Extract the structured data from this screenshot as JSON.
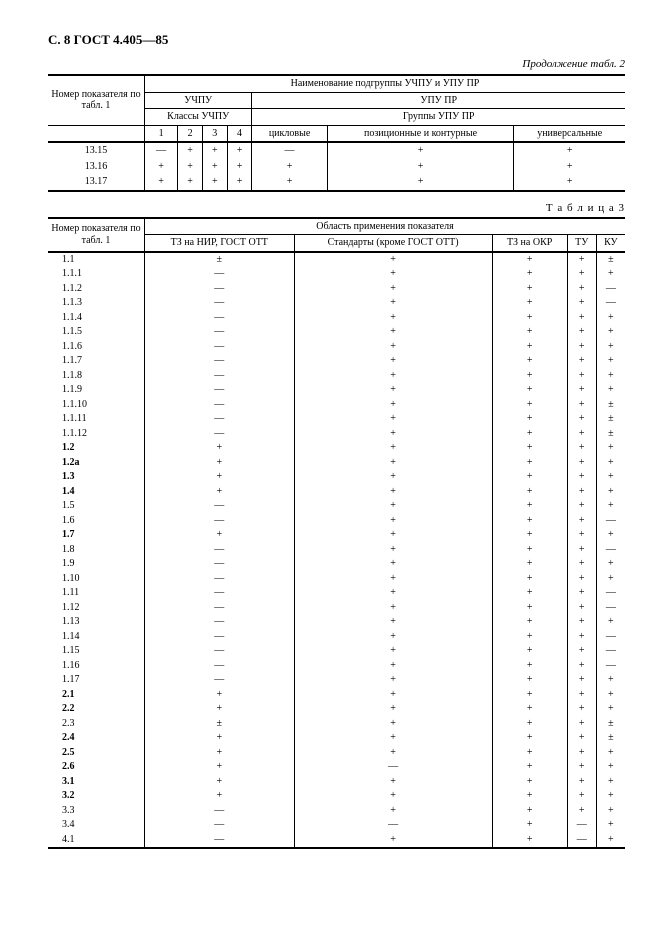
{
  "header": "С. 8 ГОСТ 4.405—85",
  "cont2": "Продолжение табл. 2",
  "t2": {
    "h_group": "Наименование подгруппы УЧПУ и УПУ ПР",
    "h_num": "Номер показателя по табл. 1",
    "h_uchpu": "УЧПУ",
    "h_upupr": "УПУ ПР",
    "h_classes": "Классы УЧПУ",
    "h_groups": "Группы УПУ ПР",
    "c1": "1",
    "c2": "2",
    "c3": "3",
    "c4": "4",
    "g1": "цикловые",
    "g2": "позиционные и контурные",
    "g3": "универсальные",
    "rows": [
      {
        "n": "13.15",
        "v": [
          "—",
          "+",
          "+",
          "+",
          "—",
          "+",
          "+"
        ]
      },
      {
        "n": "13.16",
        "v": [
          "+",
          "+",
          "+",
          "+",
          "+",
          "+",
          "+"
        ]
      },
      {
        "n": "13.17",
        "v": [
          "+",
          "+",
          "+",
          "+",
          "+",
          "+",
          "+"
        ]
      }
    ]
  },
  "t3label": "Т а б л и ц а 3",
  "t3": {
    "h_num": "Номер показателя по табл. 1",
    "h_area": "Область применения показателя",
    "c1": "ТЗ на НИР, ГОСТ ОТТ",
    "c2": "Стандарты (кроме ГОСТ ОТТ)",
    "c3": "ТЗ на ОКР",
    "c4": "ТУ",
    "c5": "КУ",
    "rows": [
      {
        "n": "1.1",
        "b": 0,
        "v": [
          "±",
          "+",
          "+",
          "+",
          "±"
        ]
      },
      {
        "n": "1.1.1",
        "b": 0,
        "v": [
          "—",
          "+",
          "+",
          "+",
          "+"
        ]
      },
      {
        "n": "1.1.2",
        "b": 0,
        "v": [
          "—",
          "+",
          "+",
          "+",
          "—"
        ]
      },
      {
        "n": "1.1.3",
        "b": 0,
        "v": [
          "—",
          "+",
          "+",
          "+",
          "—"
        ]
      },
      {
        "n": "1.1.4",
        "b": 0,
        "v": [
          "—",
          "+",
          "+",
          "+",
          "+"
        ]
      },
      {
        "n": "1.1.5",
        "b": 0,
        "v": [
          "—",
          "+",
          "+",
          "+",
          "+"
        ]
      },
      {
        "n": "1.1.6",
        "b": 0,
        "v": [
          "—",
          "+",
          "+",
          "+",
          "+"
        ]
      },
      {
        "n": "1.1.7",
        "b": 0,
        "v": [
          "—",
          "+",
          "+",
          "+",
          "+"
        ]
      },
      {
        "n": "1.1.8",
        "b": 0,
        "v": [
          "—",
          "+",
          "+",
          "+",
          "+"
        ]
      },
      {
        "n": "1.1.9",
        "b": 0,
        "v": [
          "—",
          "+",
          "+",
          "+",
          "+"
        ]
      },
      {
        "n": "1.1.10",
        "b": 0,
        "v": [
          "—",
          "+",
          "+",
          "+",
          "±"
        ]
      },
      {
        "n": "1.1.11",
        "b": 0,
        "v": [
          "—",
          "+",
          "+",
          "+",
          "±"
        ]
      },
      {
        "n": "1.1.12",
        "b": 0,
        "v": [
          "—",
          "+",
          "+",
          "+",
          "±"
        ]
      },
      {
        "n": "1.2",
        "b": 1,
        "v": [
          "+",
          "+",
          "+",
          "+",
          "+"
        ]
      },
      {
        "n": "1.2а",
        "b": 1,
        "v": [
          "+",
          "+",
          "+",
          "+",
          "+"
        ]
      },
      {
        "n": "1.3",
        "b": 1,
        "v": [
          "+",
          "+",
          "+",
          "+",
          "+"
        ]
      },
      {
        "n": "1.4",
        "b": 1,
        "v": [
          "+",
          "+",
          "+",
          "+",
          "+"
        ]
      },
      {
        "n": "1.5",
        "b": 0,
        "v": [
          "—",
          "+",
          "+",
          "+",
          "+"
        ]
      },
      {
        "n": "1.6",
        "b": 0,
        "v": [
          "—",
          "+",
          "+",
          "+",
          "—"
        ]
      },
      {
        "n": "1.7",
        "b": 1,
        "v": [
          "+",
          "+",
          "+",
          "+",
          "+"
        ]
      },
      {
        "n": "1.8",
        "b": 0,
        "v": [
          "—",
          "+",
          "+",
          "+",
          "—"
        ]
      },
      {
        "n": "1.9",
        "b": 0,
        "v": [
          "—",
          "+",
          "+",
          "+",
          "+"
        ]
      },
      {
        "n": "1.10",
        "b": 0,
        "v": [
          "—",
          "+",
          "+",
          "+",
          "+"
        ]
      },
      {
        "n": "1.11",
        "b": 0,
        "v": [
          "—",
          "+",
          "+",
          "+",
          "—"
        ]
      },
      {
        "n": "1.12",
        "b": 0,
        "v": [
          "—",
          "+",
          "+",
          "+",
          "—"
        ]
      },
      {
        "n": "1.13",
        "b": 0,
        "v": [
          "—",
          "+",
          "+",
          "+",
          "+"
        ]
      },
      {
        "n": "1.14",
        "b": 0,
        "v": [
          "—",
          "+",
          "+",
          "+",
          "—"
        ]
      },
      {
        "n": "1.15",
        "b": 0,
        "v": [
          "—",
          "+",
          "+",
          "+",
          "—"
        ]
      },
      {
        "n": "1.16",
        "b": 0,
        "v": [
          "—",
          "+",
          "+",
          "+",
          "—"
        ]
      },
      {
        "n": "1.17",
        "b": 0,
        "v": [
          "—",
          "+",
          "+",
          "+",
          "+"
        ]
      },
      {
        "n": "2.1",
        "b": 1,
        "v": [
          "+",
          "+",
          "+",
          "+",
          "+"
        ]
      },
      {
        "n": "2.2",
        "b": 1,
        "v": [
          "+",
          "+",
          "+",
          "+",
          "+"
        ]
      },
      {
        "n": "2.3",
        "b": 0,
        "v": [
          "±",
          "+",
          "+",
          "+",
          "±"
        ]
      },
      {
        "n": "2.4",
        "b": 1,
        "v": [
          "+",
          "+",
          "+",
          "+",
          "±"
        ]
      },
      {
        "n": "2.5",
        "b": 1,
        "v": [
          "+",
          "+",
          "+",
          "+",
          "+"
        ]
      },
      {
        "n": "2.6",
        "b": 1,
        "v": [
          "+",
          "—",
          "+",
          "+",
          "+"
        ]
      },
      {
        "n": "3.1",
        "b": 1,
        "v": [
          "+",
          "+",
          "+",
          "+",
          "+"
        ]
      },
      {
        "n": "3.2",
        "b": 1,
        "v": [
          "+",
          "+",
          "+",
          "+",
          "+"
        ]
      },
      {
        "n": "3.3",
        "b": 0,
        "v": [
          "—",
          "+",
          "+",
          "+",
          "+"
        ]
      },
      {
        "n": "3.4",
        "b": 0,
        "v": [
          "—",
          "—",
          "+",
          "—",
          "+"
        ]
      },
      {
        "n": "4.1",
        "b": 0,
        "v": [
          "—",
          "+",
          "+",
          "—",
          "+"
        ]
      }
    ]
  }
}
